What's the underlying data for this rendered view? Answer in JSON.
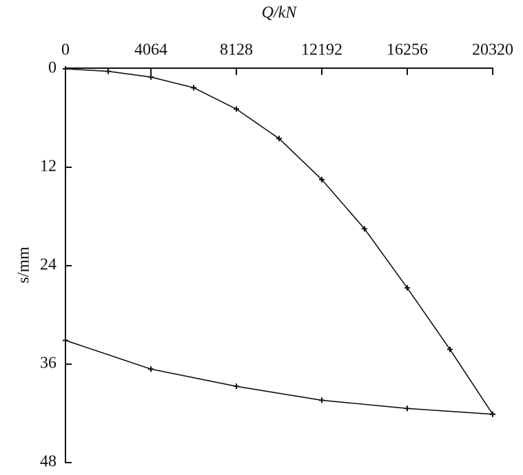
{
  "chart_data": {
    "type": "line",
    "x_label": "Q/kN",
    "y_label": "s/mm",
    "xlim": [
      0,
      20320
    ],
    "xticks": [
      0,
      4064,
      8128,
      12192,
      16256,
      20320
    ],
    "ylim": [
      0,
      48
    ],
    "yticks": [
      0,
      12,
      24,
      36,
      48
    ],
    "y_inverted": true,
    "x_axis_position": "top",
    "series": [
      {
        "color": "#111111",
        "x": [
          0,
          2032,
          4064,
          6096,
          8128,
          10160,
          12192,
          14224,
          16256,
          18288,
          20320
        ],
        "values": [
          0,
          0.3,
          1,
          2.3,
          4.9,
          8.5,
          13.5,
          19.5,
          26.7,
          34.2,
          42.1
        ]
      },
      {
        "color": "#111111",
        "x": [
          20320,
          16256,
          12192,
          8128,
          4064,
          0
        ],
        "values": [
          42.1,
          41.4,
          40.4,
          38.7,
          36.6,
          33.1
        ]
      }
    ]
  }
}
